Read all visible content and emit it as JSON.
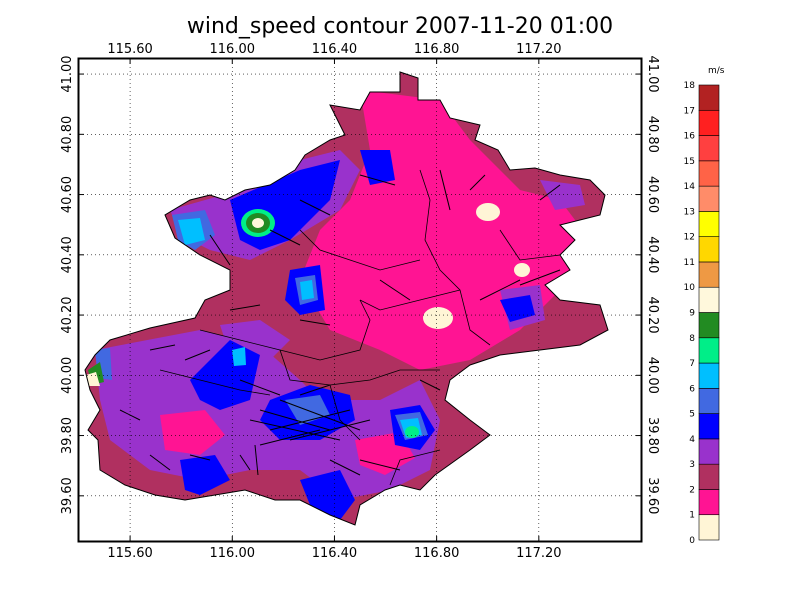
{
  "title": "wind_speed contour   2007-11-20 01:00",
  "map": {
    "x_ticks": [
      "115.60",
      "116.00",
      "116.40",
      "116.80",
      "117.20"
    ],
    "y_ticks": [
      "39.60",
      "39.80",
      "40.00",
      "40.20",
      "40.40",
      "40.60",
      "40.80",
      "41.00"
    ],
    "xlim": [
      115.4,
      117.6
    ],
    "ylim": [
      39.45,
      41.05
    ]
  },
  "colorbar": {
    "unit": "m/s",
    "levels": [
      "0",
      "1",
      "2",
      "3",
      "4",
      "5",
      "6",
      "7",
      "8",
      "9",
      "10",
      "11",
      "12",
      "13",
      "14",
      "15",
      "16",
      "17",
      "18"
    ],
    "colors": [
      "#fff5d6",
      "#ff1493",
      "#b03060",
      "#9932cc",
      "#0000ff",
      "#4169e1",
      "#00bfff",
      "#00ee88",
      "#228b22",
      "#fff8dc",
      "#ee9944",
      "#ffd700",
      "#ffff00",
      "#ff8c69",
      "#ff6347",
      "#ff4040",
      "#ff2020",
      "#b22222"
    ]
  },
  "colors": {
    "background": "#ffffff",
    "grid": "#000000",
    "region_base": "#b03060"
  }
}
